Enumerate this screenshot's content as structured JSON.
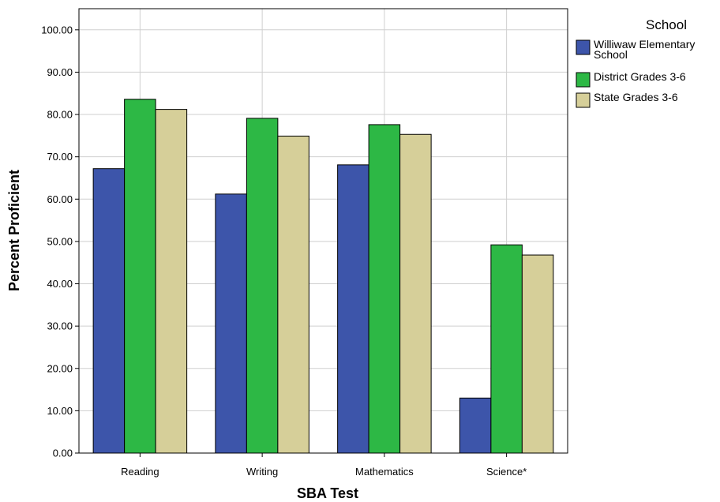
{
  "chart_data": {
    "type": "bar",
    "xlabel": "SBA Test",
    "ylabel": "Percent Proficient",
    "categories": [
      "Reading",
      "Writing",
      "Mathematics",
      "Science*"
    ],
    "ylim": [
      0,
      105
    ],
    "yticks": [
      0,
      10,
      20,
      30,
      40,
      50,
      60,
      70,
      80,
      90,
      100
    ],
    "ytick_decimals": 2,
    "grid": true,
    "legend": {
      "title": "School",
      "placement": "right"
    },
    "series": [
      {
        "name": "Williwaw Elementary School",
        "name_lines": [
          "Williwaw Elementary",
          "School"
        ],
        "color": "#3d55aa",
        "values": [
          67.2,
          61.2,
          68.1,
          13.0
        ]
      },
      {
        "name": "District Grades 3-6",
        "name_lines": [
          "District Grades 3-6"
        ],
        "color": "#2db845",
        "values": [
          83.6,
          79.1,
          77.6,
          49.2
        ]
      },
      {
        "name": "State Grades 3-6",
        "name_lines": [
          "State Grades 3-6"
        ],
        "color": "#d6cf99",
        "values": [
          81.2,
          74.9,
          75.3,
          46.8
        ]
      }
    ]
  }
}
